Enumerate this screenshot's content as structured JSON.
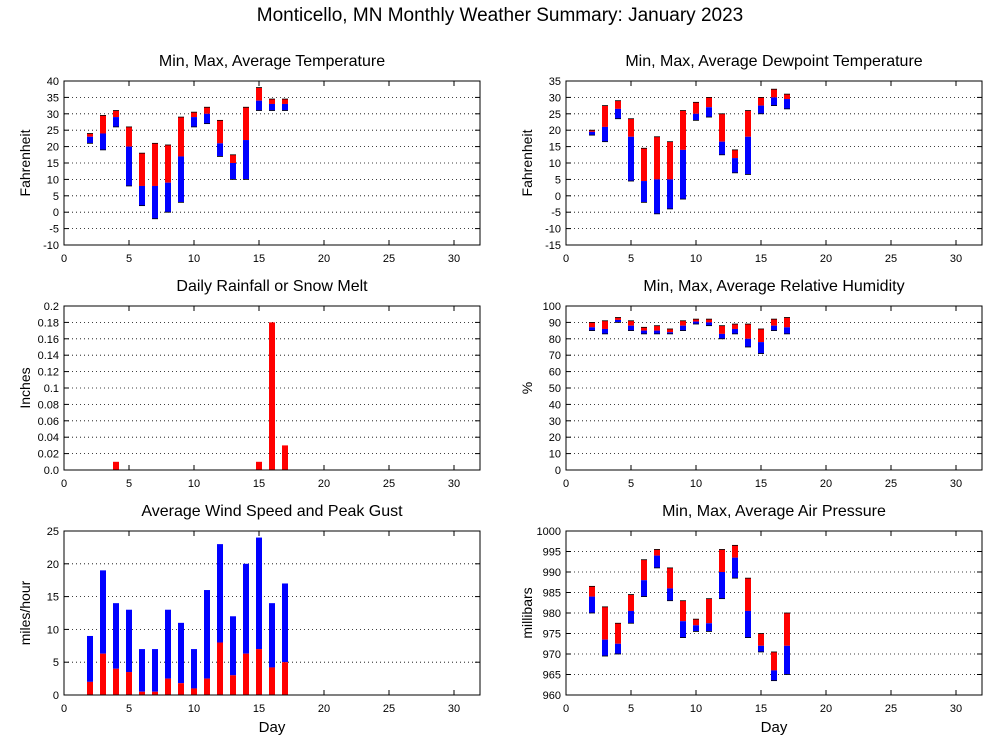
{
  "title": "Monticello, MN Monthly Weather Summary: January 2023",
  "colors": {
    "max_bar": "#ff0000",
    "min_bar": "#0000ff",
    "grid": "#000000"
  },
  "chart_data": [
    {
      "id": "temperature",
      "type": "bar",
      "title": "Min, Max, Average Temperature",
      "xlabel": "",
      "ylabel": "Fahrenheit",
      "xlim": [
        0,
        32
      ],
      "xticks": [
        0,
        5,
        10,
        15,
        20,
        25,
        30
      ],
      "ylim": [
        -10,
        40
      ],
      "yticks": [
        -10,
        -5,
        0,
        5,
        10,
        15,
        20,
        25,
        30,
        35,
        40
      ],
      "grid": true,
      "series": [
        {
          "name": "",
          "role": "range",
          "days": [
            2,
            3,
            4,
            5,
            6,
            7,
            8,
            9,
            10,
            11,
            12,
            13,
            14,
            15,
            16,
            17
          ],
          "min": [
            21,
            19,
            26,
            8,
            2,
            -2,
            0,
            3,
            26,
            27,
            17,
            10,
            10,
            31,
            31,
            31
          ],
          "avg": [
            23,
            24,
            29,
            20,
            8,
            8,
            9,
            17,
            29,
            30,
            21,
            15,
            22,
            34,
            33,
            33
          ],
          "max": [
            24,
            29.5,
            31,
            26,
            18,
            21,
            20.5,
            29,
            30.5,
            32,
            28,
            17.5,
            32,
            38,
            34.5,
            34.5
          ]
        }
      ]
    },
    {
      "id": "dewpoint",
      "type": "bar",
      "title": "Min, Max, Average Dewpoint Temperature",
      "xlabel": "",
      "ylabel": "Fahrenheit",
      "xlim": [
        0,
        32
      ],
      "xticks": [
        0,
        5,
        10,
        15,
        20,
        25,
        30
      ],
      "ylim": [
        -15,
        35
      ],
      "yticks": [
        -15,
        -10,
        -5,
        0,
        5,
        10,
        15,
        20,
        25,
        30,
        35
      ],
      "grid": true,
      "series": [
        {
          "name": "",
          "role": "range",
          "days": [
            2,
            3,
            4,
            5,
            6,
            7,
            8,
            9,
            10,
            11,
            12,
            13,
            14,
            15,
            16,
            17
          ],
          "min": [
            18.5,
            16.5,
            23.5,
            4.5,
            -2,
            -5.5,
            -4,
            -1,
            23,
            24,
            12.5,
            7,
            6.5,
            25,
            27.5,
            26.5
          ],
          "avg": [
            19.5,
            21,
            26.5,
            18,
            4.5,
            5,
            5,
            14,
            25,
            27,
            16.5,
            11.5,
            18,
            27.5,
            30,
            29.5
          ],
          "max": [
            20,
            27.5,
            29,
            23.5,
            14.5,
            18,
            16.5,
            26,
            28.5,
            30,
            25,
            14,
            26,
            30,
            32.5,
            31
          ]
        }
      ]
    },
    {
      "id": "rainfall",
      "type": "bar",
      "title": "Daily Rainfall or Snow Melt",
      "xlabel": "",
      "ylabel": "Inches",
      "xlim": [
        0,
        32
      ],
      "xticks": [
        0,
        5,
        10,
        15,
        20,
        25,
        30
      ],
      "ylim": [
        0,
        0.2
      ],
      "yticks": [
        "0.0",
        "0.02",
        "0.04",
        "0.06",
        "0.08",
        "0.1",
        "0.12",
        "0.14",
        "0.16",
        "0.18",
        "0.2"
      ],
      "grid": true,
      "series": [
        {
          "name": "",
          "role": "single",
          "days": [
            4,
            15,
            16,
            17
          ],
          "values": [
            0.01,
            0.01,
            0.18,
            0.03
          ]
        }
      ]
    },
    {
      "id": "humidity",
      "type": "bar",
      "title": "Min, Max, Average Relative Humidity",
      "xlabel": "",
      "ylabel": "%",
      "xlim": [
        0,
        32
      ],
      "xticks": [
        0,
        5,
        10,
        15,
        20,
        25,
        30
      ],
      "ylim": [
        0,
        100
      ],
      "yticks": [
        0,
        10,
        20,
        30,
        40,
        50,
        60,
        70,
        80,
        90,
        100
      ],
      "grid": true,
      "series": [
        {
          "name": "",
          "role": "range",
          "days": [
            2,
            3,
            4,
            5,
            6,
            7,
            8,
            9,
            10,
            11,
            12,
            13,
            14,
            15,
            16,
            17
          ],
          "min": [
            85,
            83,
            90,
            85,
            83,
            83,
            83,
            85,
            89,
            88,
            80,
            83,
            75,
            71,
            85,
            83
          ],
          "avg": [
            87,
            86,
            91.5,
            88,
            85,
            85,
            84,
            88,
            90.5,
            90,
            83,
            86,
            80,
            78,
            88,
            87
          ],
          "max": [
            90,
            91,
            93,
            91,
            87,
            88,
            86,
            91,
            92,
            92,
            88,
            89,
            89,
            86,
            92,
            93
          ]
        }
      ]
    },
    {
      "id": "wind",
      "type": "bar",
      "title": "Average Wind Speed and Peak Gust",
      "xlabel": "Day",
      "ylabel": "miles/hour",
      "xlim": [
        0,
        32
      ],
      "xticks": [
        0,
        5,
        10,
        15,
        20,
        25,
        30
      ],
      "ylim": [
        0,
        25
      ],
      "yticks": [
        0,
        5,
        10,
        15,
        20,
        25
      ],
      "grid": true,
      "series": [
        {
          "name": "",
          "role": "stacked",
          "days": [
            2,
            3,
            4,
            5,
            6,
            7,
            8,
            9,
            10,
            11,
            12,
            13,
            14,
            15,
            16,
            17
          ],
          "avg": [
            2,
            6.3,
            4,
            3.5,
            0.5,
            0.5,
            2.5,
            1.8,
            1,
            2.5,
            8,
            3,
            6.3,
            7,
            4.2,
            5
          ],
          "gust": [
            9,
            19,
            14,
            13,
            7,
            7,
            13,
            11,
            7,
            16,
            23,
            12,
            20,
            24,
            14,
            17
          ]
        }
      ]
    },
    {
      "id": "pressure",
      "type": "bar",
      "title": "Min, Max, Average Air Pressure",
      "xlabel": "Day",
      "ylabel": "millibars",
      "xlim": [
        0,
        32
      ],
      "xticks": [
        0,
        5,
        10,
        15,
        20,
        25,
        30
      ],
      "ylim": [
        960,
        1000
      ],
      "yticks": [
        960,
        965,
        970,
        975,
        980,
        985,
        990,
        995,
        1000
      ],
      "grid": true,
      "series": [
        {
          "name": "",
          "role": "range",
          "days": [
            2,
            3,
            4,
            5,
            6,
            7,
            8,
            9,
            10,
            11,
            12,
            13,
            14,
            15,
            16,
            17
          ],
          "min": [
            980,
            969.5,
            970,
            977.5,
            984,
            991,
            983,
            974,
            975.5,
            975.5,
            983.5,
            988.5,
            974,
            970.5,
            963.5,
            965
          ],
          "avg": [
            984,
            973.5,
            972.5,
            980.5,
            988,
            994,
            986,
            978,
            977,
            977.5,
            990,
            993.5,
            980.5,
            972,
            966,
            972
          ],
          "max": [
            986.5,
            981.5,
            977.5,
            984.5,
            993,
            995.5,
            991,
            983,
            978.5,
            983.5,
            995.5,
            996.5,
            988.5,
            975,
            970.5,
            980
          ]
        }
      ]
    }
  ]
}
